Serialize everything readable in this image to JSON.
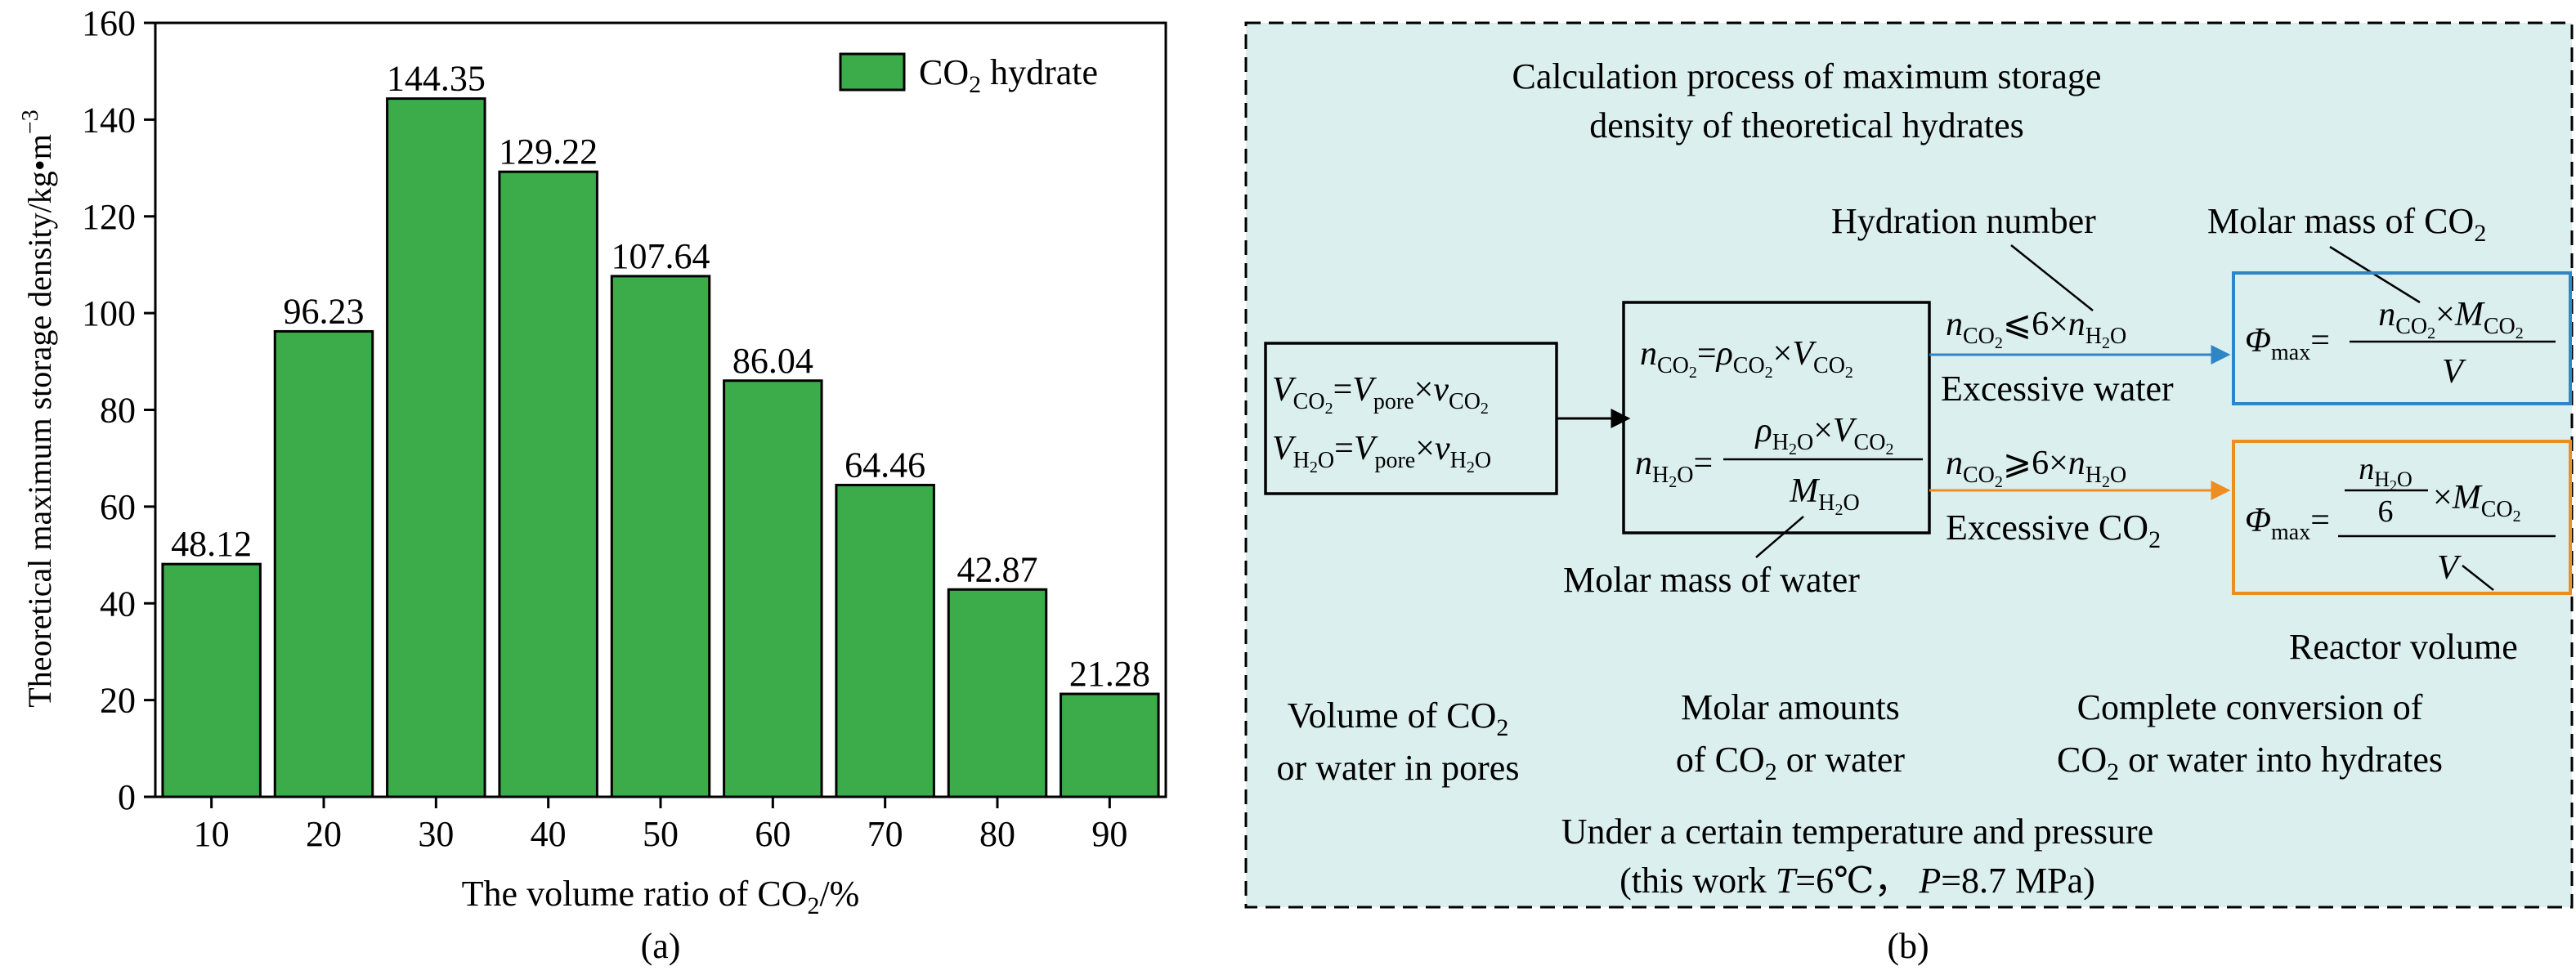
{
  "chart_data": {
    "type": "bar",
    "categories": [
      "10",
      "20",
      "30",
      "40",
      "50",
      "60",
      "70",
      "80",
      "90"
    ],
    "values": [
      48.12,
      96.23,
      144.35,
      129.22,
      107.64,
      86.04,
      64.46,
      42.87,
      21.28
    ],
    "data_labels": [
      "48.12",
      "96.23",
      "144.35",
      "129.22",
      "107.64",
      "86.04",
      "64.46",
      "42.87",
      "21.28"
    ],
    "ylabel": "Theoretical maximum storage density/kg•m",
    "ylabel_sup": "−3",
    "xlabel_pre": "The volume ratio of CO",
    "xlabel_sub": "2",
    "xlabel_post": "/%",
    "ylim": [
      0,
      160
    ],
    "yticks": [
      "0",
      "20",
      "40",
      "60",
      "80",
      "100",
      "120",
      "140",
      "160"
    ],
    "legend": {
      "pre": "CO",
      "sub": "2",
      "post": " hydrate",
      "placement": "top-right"
    },
    "bar_color": "#3cac4a",
    "panel_label": "(a)"
  },
  "diagram": {
    "panel_label": "(b)",
    "background": "#dcefef",
    "title_line1": "Calculation process of maximum storage",
    "title_line2": "density of theoretical hydrates",
    "hydration_number": "Hydration number",
    "molar_mass_co2": "Molar mass of CO",
    "molar_mass_water": "Molar mass of water",
    "reactor_volume": "Reactor volume",
    "excessive_water": "Excessive water",
    "excessive_co2": "Excessive CO",
    "col1_line1": "Volume of CO",
    "col1_line2": "or water in pores",
    "col2_line1": "Molar amounts",
    "col2_line2": "of CO",
    "col2_line2_post": " or water",
    "col3_line1": "Complete conversion of",
    "col3_line2": "CO",
    "col3_line2_post": " or water into hydrates",
    "bottom_line1": "Under a certain temperature and pressure",
    "bottom_line2_pre": "(this work ",
    "bottom_T": "T",
    "bottom_mid": "=6℃， ",
    "bottom_P": "P",
    "bottom_post": "=8.7 MPa)",
    "blue": "#2f86c6",
    "orange": "#ee8d22"
  }
}
